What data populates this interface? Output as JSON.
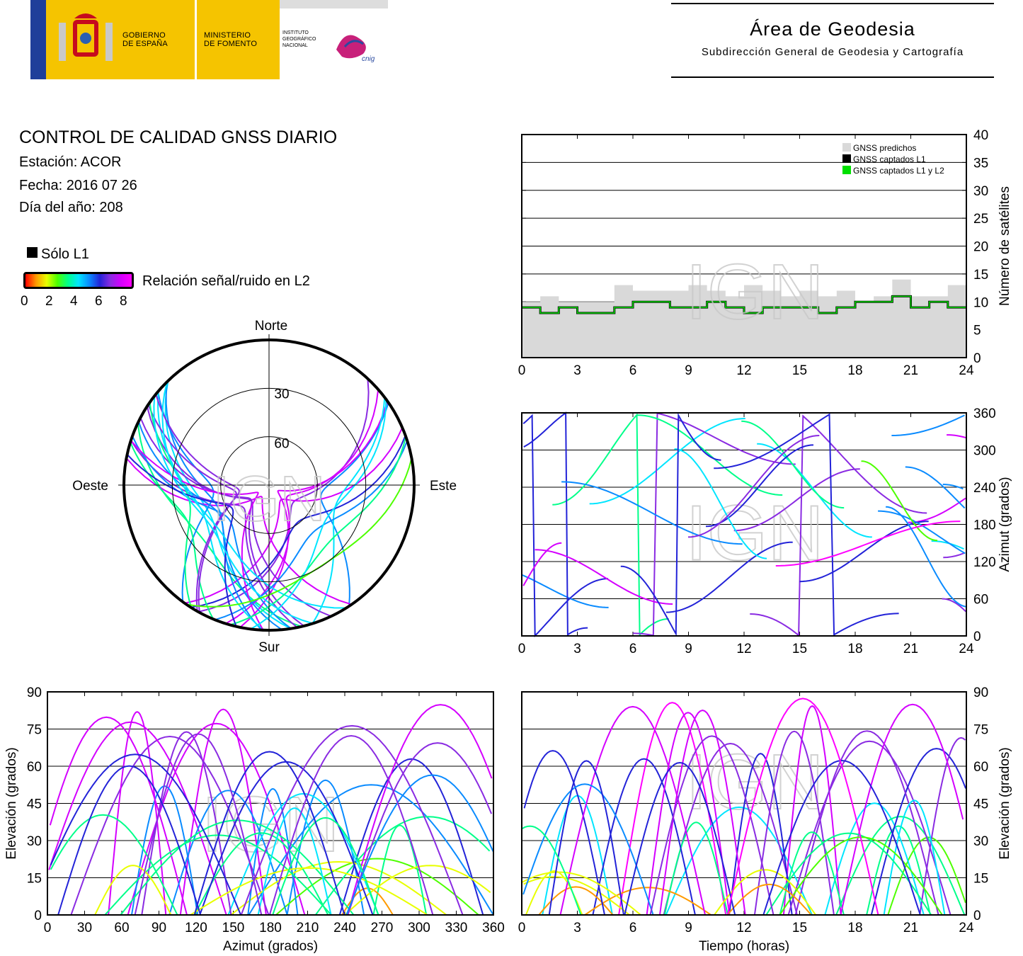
{
  "header": {
    "gov_line1": "GOBIERNO",
    "gov_line2": "DE ESPAÑA",
    "ministry_line1": "MINISTERIO",
    "ministry_line2": "DE FOMENTO",
    "ign_line1": "INSTITUTO",
    "ign_line2": "GEOGRÁFICO",
    "ign_line3": "NACIONAL",
    "cnig": "cnig",
    "area_title": "Área de Geodesia",
    "area_subtitle": "Subdirección General de Geodesia y Cartografía"
  },
  "report": {
    "title": "CONTROL DE CALIDAD GNSS DIARIO",
    "station": "Estación: ACOR",
    "date": "Fecha: 2016 07 26",
    "doy": "Día del año: 208"
  },
  "legend": {
    "l1_only": "Sólo L1",
    "snr_label": "Relación señal/ruido en L2",
    "snr_ticks": [
      "0",
      "2",
      "4",
      "6",
      "8"
    ]
  },
  "watermark": "IGN",
  "chart_data": [
    {
      "type": "line",
      "id": "satellite-count",
      "xlabel": "",
      "ylabel": "Número de satélites",
      "xlim": [
        0,
        24
      ],
      "ylim": [
        0,
        40
      ],
      "xticks": [
        0,
        3,
        6,
        9,
        12,
        15,
        18,
        21,
        24
      ],
      "yticks": [
        0,
        5,
        10,
        15,
        20,
        25,
        30,
        35,
        40
      ],
      "legend_position": "top-right",
      "series": [
        {
          "name": "GNSS predichos",
          "color": "#d9d9d9",
          "x": [
            0,
            1,
            2,
            3,
            4,
            5,
            6,
            7,
            8,
            9,
            10,
            11,
            12,
            13,
            14,
            15,
            16,
            17,
            18,
            19,
            20,
            21,
            22,
            23,
            24
          ],
          "y": [
            10,
            11,
            10,
            10,
            10,
            13,
            12,
            12,
            12,
            13,
            12,
            11,
            13,
            12,
            11,
            12,
            11,
            12,
            10,
            11,
            14,
            11,
            11,
            13,
            11
          ]
        },
        {
          "name": "GNSS captados L1",
          "color": "#000000",
          "x": [
            0,
            1,
            2,
            3,
            4,
            5,
            6,
            7,
            8,
            9,
            10,
            11,
            12,
            13,
            14,
            15,
            16,
            17,
            18,
            19,
            20,
            21,
            22,
            23,
            24
          ],
          "y": [
            9,
            8,
            9,
            8,
            8,
            9,
            10,
            10,
            9,
            9,
            10,
            9,
            8,
            9,
            9,
            9,
            8,
            9,
            10,
            10,
            11,
            9,
            10,
            9,
            9
          ]
        },
        {
          "name": "GNSS captados L1 y L2",
          "color": "#00e000",
          "x": [
            0,
            1,
            2,
            3,
            4,
            5,
            6,
            7,
            8,
            9,
            10,
            11,
            12,
            13,
            14,
            15,
            16,
            17,
            18,
            19,
            20,
            21,
            22,
            23,
            24
          ],
          "y": [
            9,
            8,
            9,
            8,
            8,
            9,
            10,
            10,
            9,
            9,
            10,
            9,
            8,
            9,
            9,
            9,
            8,
            9,
            10,
            10,
            11,
            9,
            10,
            9,
            9
          ]
        }
      ]
    },
    {
      "type": "scatter",
      "id": "azimuth-time",
      "xlabel": "",
      "ylabel": "Azimut (grados)",
      "xlim": [
        0,
        24
      ],
      "ylim": [
        0,
        360
      ],
      "xticks": [
        0,
        3,
        6,
        9,
        12,
        15,
        18,
        21,
        24
      ],
      "yticks": [
        0,
        60,
        120,
        180,
        240,
        300,
        360
      ]
    },
    {
      "type": "scatter",
      "id": "elevation-azimuth",
      "xlabel": "Azimut (grados)",
      "ylabel": "Elevación (grados)",
      "xlim": [
        0,
        360
      ],
      "ylim": [
        0,
        90
      ],
      "xticks": [
        0,
        30,
        60,
        90,
        120,
        150,
        180,
        210,
        240,
        270,
        300,
        330,
        360
      ],
      "yticks": [
        0,
        15,
        30,
        45,
        60,
        75,
        90
      ]
    },
    {
      "type": "scatter",
      "id": "elevation-time",
      "xlabel": "Tiempo (horas)",
      "ylabel": "Elevación (grados)",
      "xlim": [
        0,
        24
      ],
      "ylim": [
        0,
        90
      ],
      "xticks": [
        0,
        3,
        6,
        9,
        12,
        15,
        18,
        21,
        24
      ],
      "yticks": [
        0,
        15,
        30,
        45,
        60,
        75,
        90
      ]
    },
    {
      "type": "scatter",
      "id": "skyplot",
      "labels": {
        "north": "Norte",
        "south": "Sur",
        "west": "Oeste",
        "east": "Este"
      },
      "rings": [
        "30",
        "60"
      ]
    }
  ]
}
